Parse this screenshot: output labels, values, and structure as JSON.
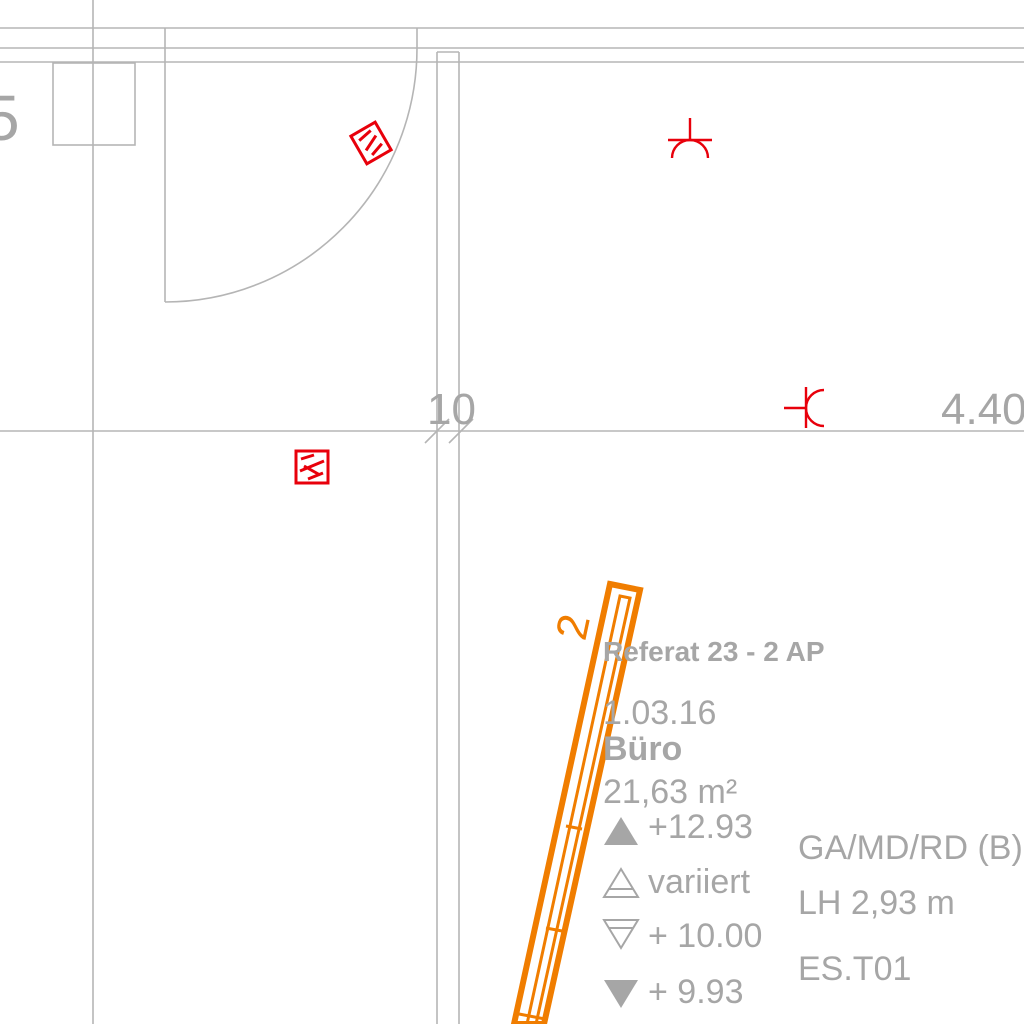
{
  "plan": {
    "room_number_fragment": "5",
    "dimension_left": "10",
    "dimension_right": "4.40",
    "ramp_number": "2"
  },
  "room": {
    "department": "Referat 23 -  2 AP",
    "date": "1.03.16",
    "name": "Büro",
    "area": "21,63 m²",
    "levels": [
      {
        "symbol": "filled-up-triangle-icon",
        "value": "+12.93"
      },
      {
        "symbol": "outline-up-triangle-icon",
        "value": "variiert"
      },
      {
        "symbol": "outline-down-triangle-icon",
        "value": "+ 10.00"
      },
      {
        "symbol": "filled-down-triangle-icon",
        "value": "+ 9.93"
      }
    ],
    "floor_finish": "GA/MD/RD (B)",
    "clear_height": "LH 2,93 m",
    "code": "ES.T01"
  },
  "colors": {
    "line": "#b3b3b3",
    "text": "#a6a6a6",
    "symbol": "#e8000b",
    "ramp": "#f07d00"
  }
}
